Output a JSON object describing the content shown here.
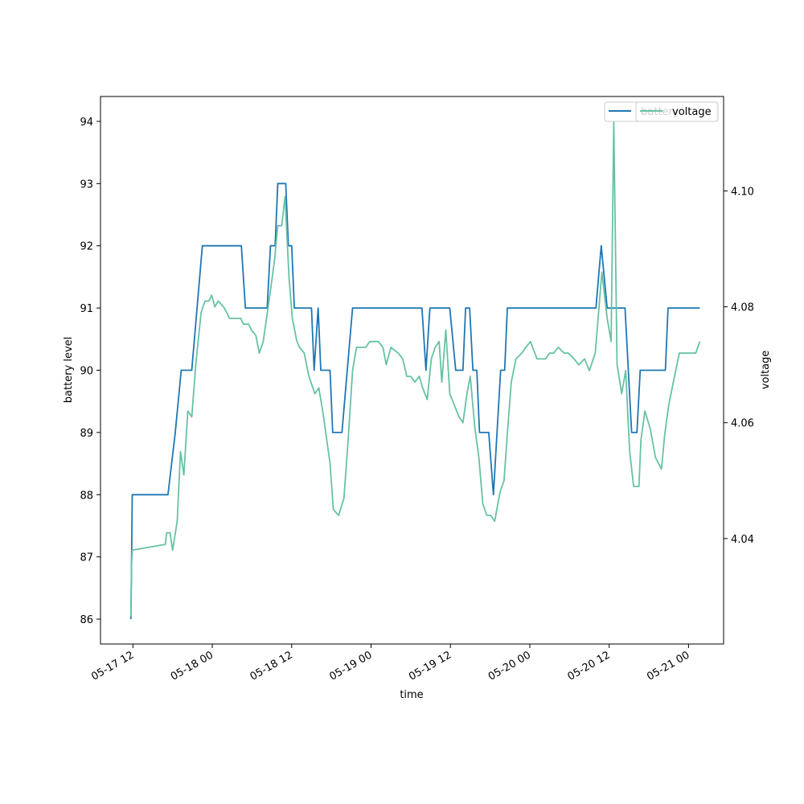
{
  "chart_data": {
    "type": "line",
    "title": "",
    "xlabel": "time",
    "ylabel_left": "battery level",
    "ylabel_right": "voltage",
    "x_ticks": [
      "05-17 12",
      "05-18 00",
      "05-18 12",
      "05-19 00",
      "05-19 12",
      "05-20 00",
      "05-20 12",
      "05-21 00"
    ],
    "x_tick_hours": [
      12,
      24,
      36,
      48,
      60,
      72,
      84,
      96
    ],
    "x_range_hours": [
      7.1,
      101.3
    ],
    "y_left_ticks": [
      "86",
      "87",
      "88",
      "89",
      "90",
      "91",
      "92",
      "93",
      "94"
    ],
    "y_left_range": [
      85.6,
      94.4
    ],
    "y_right_ticks": [
      "4.04",
      "4.06",
      "4.08",
      "4.10"
    ],
    "y_right_range": [
      4.0218,
      4.1163
    ],
    "legend": {
      "placement": "top-right",
      "entries": [
        "battery",
        "voltage"
      ]
    },
    "series": [
      {
        "name": "battery",
        "axis": "left",
        "color": "#1f77b4",
        "points": [
          [
            11.7,
            86
          ],
          [
            11.8,
            87
          ],
          [
            11.9,
            88
          ],
          [
            17.3,
            88
          ],
          [
            18.4,
            89
          ],
          [
            19.3,
            90
          ],
          [
            20.9,
            90
          ],
          [
            22.5,
            92
          ],
          [
            28.4,
            92
          ],
          [
            29.0,
            91
          ],
          [
            32.3,
            91
          ],
          [
            32.8,
            92
          ],
          [
            33.5,
            92
          ],
          [
            33.9,
            93
          ],
          [
            35.1,
            93
          ],
          [
            35.5,
            92
          ],
          [
            36.0,
            92
          ],
          [
            36.4,
            91
          ],
          [
            39.0,
            91
          ],
          [
            39.4,
            90
          ],
          [
            40.0,
            91
          ],
          [
            40.4,
            90
          ],
          [
            41.8,
            90
          ],
          [
            42.2,
            89
          ],
          [
            43.6,
            89
          ],
          [
            45.2,
            91
          ],
          [
            55.7,
            91
          ],
          [
            56.3,
            90
          ],
          [
            56.9,
            91
          ],
          [
            59.9,
            91
          ],
          [
            60.8,
            90
          ],
          [
            61.9,
            90
          ],
          [
            62.3,
            91
          ],
          [
            62.9,
            91
          ],
          [
            63.4,
            90
          ],
          [
            64.0,
            90
          ],
          [
            64.4,
            89
          ],
          [
            65.8,
            89
          ],
          [
            66.5,
            88
          ],
          [
            67.6,
            90
          ],
          [
            68.2,
            90
          ],
          [
            68.6,
            91
          ],
          [
            82.0,
            91
          ],
          [
            82.8,
            92
          ],
          [
            83.7,
            91
          ],
          [
            84.5,
            91
          ],
          [
            85.1,
            91
          ],
          [
            86.4,
            91
          ],
          [
            87.4,
            89
          ],
          [
            88.2,
            89
          ],
          [
            88.7,
            90
          ],
          [
            92.5,
            90
          ],
          [
            92.9,
            91
          ],
          [
            97.7,
            91
          ]
        ]
      },
      {
        "name": "voltage",
        "axis": "right",
        "color": "#66c2a5",
        "points": [
          [
            11.7,
            4.0265
          ],
          [
            11.8,
            4.036
          ],
          [
            11.9,
            4.038
          ],
          [
            16.9,
            4.039
          ],
          [
            17.1,
            4.041
          ],
          [
            17.6,
            4.041
          ],
          [
            18.0,
            4.038
          ],
          [
            18.7,
            4.043
          ],
          [
            19.2,
            4.055
          ],
          [
            19.7,
            4.051
          ],
          [
            20.3,
            4.062
          ],
          [
            20.9,
            4.061
          ],
          [
            21.5,
            4.07
          ],
          [
            22.3,
            4.079
          ],
          [
            22.9,
            4.081
          ],
          [
            23.5,
            4.081
          ],
          [
            23.9,
            4.082
          ],
          [
            24.4,
            4.08
          ],
          [
            24.9,
            4.081
          ],
          [
            25.7,
            4.08
          ],
          [
            26.2,
            4.079
          ],
          [
            26.6,
            4.078
          ],
          [
            27.6,
            4.078
          ],
          [
            28.3,
            4.078
          ],
          [
            28.7,
            4.077
          ],
          [
            29.5,
            4.077
          ],
          [
            29.9,
            4.076
          ],
          [
            30.6,
            4.075
          ],
          [
            31.1,
            4.072
          ],
          [
            31.7,
            4.074
          ],
          [
            32.7,
            4.082
          ],
          [
            33.4,
            4.088
          ],
          [
            33.9,
            4.094
          ],
          [
            34.5,
            4.094
          ],
          [
            35.0,
            4.099
          ],
          [
            35.6,
            4.085
          ],
          [
            36.1,
            4.078
          ],
          [
            36.8,
            4.074
          ],
          [
            37.2,
            4.073
          ],
          [
            37.9,
            4.072
          ],
          [
            38.6,
            4.068
          ],
          [
            39.5,
            4.065
          ],
          [
            40.1,
            4.066
          ],
          [
            40.7,
            4.062
          ],
          [
            41.3,
            4.057
          ],
          [
            41.8,
            4.053
          ],
          [
            42.3,
            4.045
          ],
          [
            43.1,
            4.044
          ],
          [
            43.9,
            4.047
          ],
          [
            44.6,
            4.058
          ],
          [
            45.2,
            4.069
          ],
          [
            45.8,
            4.073
          ],
          [
            46.3,
            4.073
          ],
          [
            47.2,
            4.073
          ],
          [
            47.8,
            4.074
          ],
          [
            49.1,
            4.074
          ],
          [
            49.8,
            4.073
          ],
          [
            50.3,
            4.07
          ],
          [
            51.0,
            4.073
          ],
          [
            52.1,
            4.072
          ],
          [
            52.8,
            4.071
          ],
          [
            53.4,
            4.068
          ],
          [
            54.0,
            4.068
          ],
          [
            54.6,
            4.067
          ],
          [
            55.3,
            4.068
          ],
          [
            55.8,
            4.066
          ],
          [
            56.5,
            4.064
          ],
          [
            57.1,
            4.071
          ],
          [
            57.7,
            4.073
          ],
          [
            58.3,
            4.074
          ],
          [
            58.7,
            4.067
          ],
          [
            59.3,
            4.076
          ],
          [
            59.9,
            4.065
          ],
          [
            60.6,
            4.063
          ],
          [
            61.3,
            4.061
          ],
          [
            61.9,
            4.06
          ],
          [
            62.5,
            4.065
          ],
          [
            63.0,
            4.068
          ],
          [
            63.7,
            4.059
          ],
          [
            64.3,
            4.054
          ],
          [
            64.9,
            4.046
          ],
          [
            65.5,
            4.044
          ],
          [
            66.1,
            4.044
          ],
          [
            66.7,
            4.043
          ],
          [
            67.5,
            4.048
          ],
          [
            68.1,
            4.05
          ],
          [
            68.6,
            4.058
          ],
          [
            69.2,
            4.067
          ],
          [
            69.9,
            4.071
          ],
          [
            70.8,
            4.072
          ],
          [
            71.4,
            4.073
          ],
          [
            72.1,
            4.074
          ],
          [
            73.1,
            4.071
          ],
          [
            73.7,
            4.071
          ],
          [
            74.4,
            4.071
          ],
          [
            75.0,
            4.072
          ],
          [
            75.6,
            4.072
          ],
          [
            76.3,
            4.073
          ],
          [
            77.2,
            4.072
          ],
          [
            77.8,
            4.072
          ],
          [
            78.7,
            4.071
          ],
          [
            79.4,
            4.07
          ],
          [
            80.3,
            4.071
          ],
          [
            81.0,
            4.069
          ],
          [
            81.9,
            4.072
          ],
          [
            82.9,
            4.086
          ],
          [
            83.7,
            4.078
          ],
          [
            84.3,
            4.074
          ],
          [
            84.7,
            4.112
          ],
          [
            85.2,
            4.07
          ],
          [
            85.9,
            4.065
          ],
          [
            86.5,
            4.069
          ],
          [
            87.1,
            4.055
          ],
          [
            87.7,
            4.049
          ],
          [
            88.5,
            4.049
          ],
          [
            88.8,
            4.057
          ],
          [
            89.4,
            4.062
          ],
          [
            90.2,
            4.059
          ],
          [
            91.0,
            4.054
          ],
          [
            91.9,
            4.052
          ],
          [
            92.4,
            4.058
          ],
          [
            93.0,
            4.063
          ],
          [
            93.7,
            4.067
          ],
          [
            94.6,
            4.072
          ],
          [
            95.2,
            4.072
          ],
          [
            95.9,
            4.072
          ],
          [
            96.5,
            4.072
          ],
          [
            97.1,
            4.072
          ],
          [
            97.7,
            4.074
          ]
        ]
      }
    ]
  }
}
